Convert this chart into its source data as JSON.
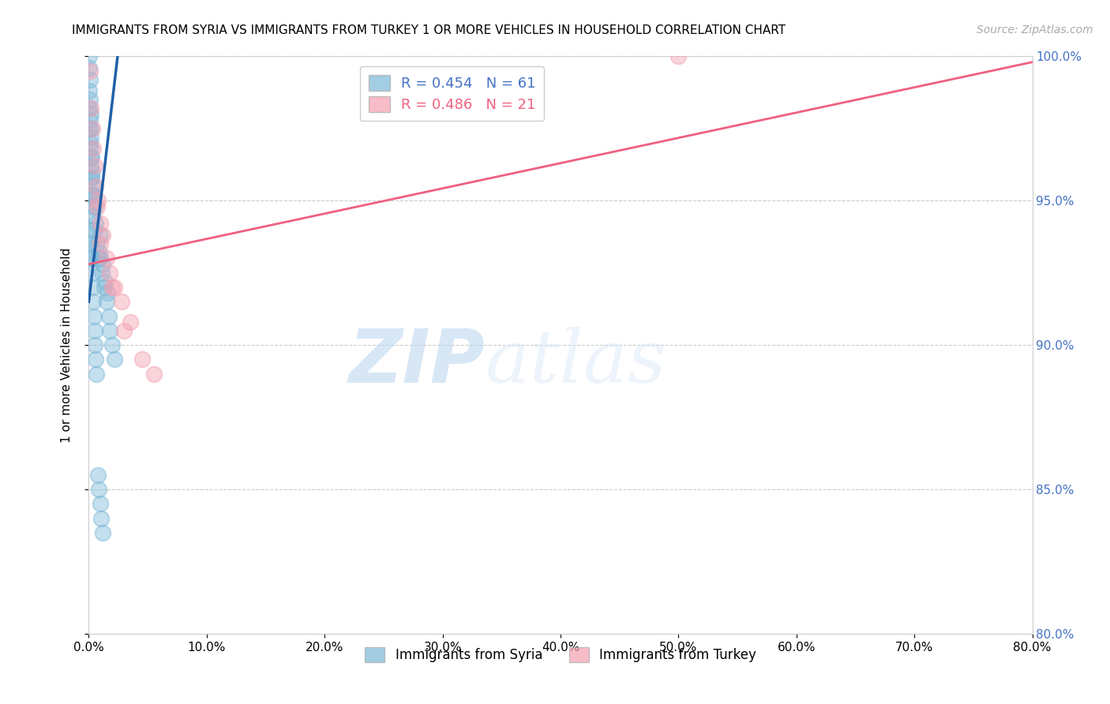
{
  "title": "IMMIGRANTS FROM SYRIA VS IMMIGRANTS FROM TURKEY 1 OR MORE VEHICLES IN HOUSEHOLD CORRELATION CHART",
  "source": "Source: ZipAtlas.com",
  "ylabel": "1 or more Vehicles in Household",
  "xlim": [
    0.0,
    80.0
  ],
  "ylim": [
    80.0,
    100.0
  ],
  "xticks": [
    0.0,
    10.0,
    20.0,
    30.0,
    40.0,
    50.0,
    60.0,
    70.0,
    80.0
  ],
  "yticks": [
    80.0,
    85.0,
    90.0,
    95.0,
    100.0
  ],
  "syria_color": "#7db8d8",
  "turkey_color": "#f4a0b0",
  "syria_line_color": "#2060a8",
  "turkey_line_color": "#f06080",
  "syria_R": 0.454,
  "syria_N": 61,
  "turkey_R": 0.486,
  "turkey_N": 21,
  "watermark_zip": "ZIP",
  "watermark_atlas": "atlas",
  "background_color": "#ffffff",
  "grid_color": "#cccccc",
  "right_axis_color": "#4472C4",
  "syria_line_x0": 0.0,
  "syria_line_y0": 91.5,
  "syria_line_x1": 2.5,
  "syria_line_y1": 100.2,
  "turkey_line_x0": 0.0,
  "turkey_line_y0": 92.8,
  "turkey_line_x1": 80.0,
  "turkey_line_y1": 99.8,
  "syria_scatter_x": [
    0.05,
    0.05,
    0.05,
    0.05,
    0.05,
    0.1,
    0.1,
    0.1,
    0.1,
    0.15,
    0.15,
    0.15,
    0.2,
    0.2,
    0.2,
    0.2,
    0.25,
    0.25,
    0.25,
    0.3,
    0.3,
    0.35,
    0.35,
    0.4,
    0.4,
    0.5,
    0.5,
    0.6,
    0.7,
    0.8,
    0.9,
    1.0,
    1.0,
    1.1,
    1.2,
    1.3,
    1.4,
    1.5,
    1.6,
    1.7,
    1.8,
    2.0,
    2.2,
    0.05,
    0.08,
    0.12,
    0.18,
    0.22,
    0.28,
    0.32,
    0.38,
    0.42,
    0.48,
    0.52,
    0.58,
    0.65,
    0.75,
    0.85,
    0.95,
    1.05,
    1.15
  ],
  "syria_scatter_y": [
    100.0,
    99.6,
    98.8,
    98.2,
    97.5,
    99.2,
    98.5,
    97.8,
    97.0,
    98.0,
    97.2,
    96.5,
    97.5,
    96.8,
    96.2,
    95.8,
    96.5,
    95.8,
    95.2,
    96.0,
    95.2,
    95.5,
    94.8,
    95.2,
    94.5,
    94.8,
    94.0,
    94.2,
    93.5,
    93.0,
    93.2,
    93.8,
    93.0,
    92.5,
    92.8,
    92.0,
    92.2,
    91.5,
    91.8,
    91.0,
    90.5,
    90.0,
    89.5,
    93.5,
    93.0,
    94.0,
    93.5,
    93.0,
    92.5,
    92.0,
    91.5,
    91.0,
    90.5,
    90.0,
    89.5,
    89.0,
    85.5,
    85.0,
    84.5,
    84.0,
    83.5
  ],
  "turkey_scatter_x": [
    0.1,
    0.2,
    0.3,
    0.4,
    0.5,
    0.6,
    0.7,
    0.8,
    1.0,
    1.2,
    1.5,
    1.8,
    2.2,
    2.8,
    3.5,
    4.5,
    5.5,
    3.0,
    2.0,
    1.0,
    50.0
  ],
  "turkey_scatter_y": [
    99.5,
    98.2,
    97.5,
    96.8,
    96.2,
    95.5,
    94.8,
    95.0,
    94.2,
    93.8,
    93.0,
    92.5,
    92.0,
    91.5,
    90.8,
    89.5,
    89.0,
    90.5,
    92.0,
    93.5,
    100.0
  ]
}
